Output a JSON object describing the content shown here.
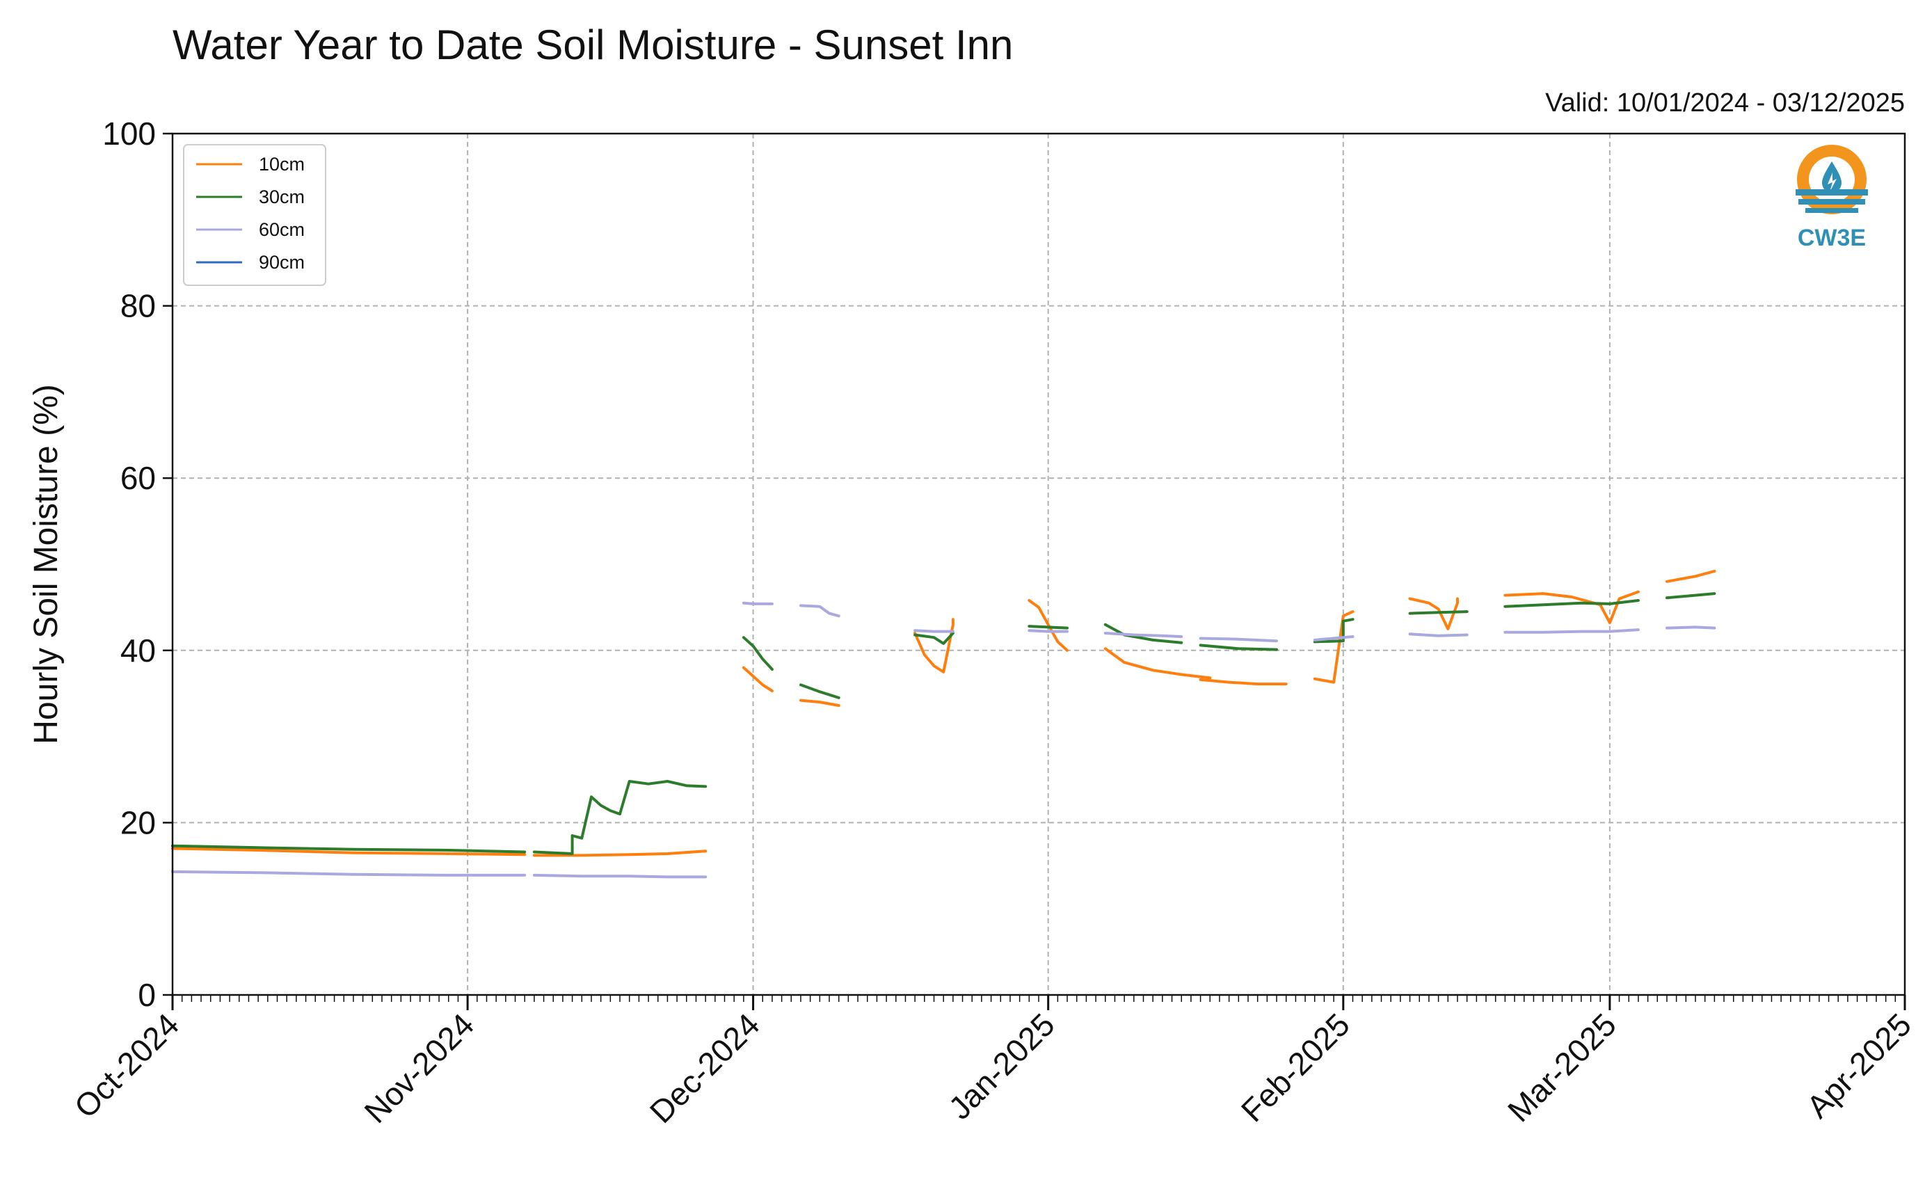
{
  "chart_data": {
    "type": "line",
    "title": "Water Year to Date Soil Moisture - Sunset Inn",
    "subtitle": "Valid: 10/01/2024 - 03/12/2025",
    "ylabel": "Hourly Soil Moisture (%)",
    "xlabel": "",
    "ylim": [
      0,
      100
    ],
    "xlim": [
      "2024-10-01",
      "2025-04-01"
    ],
    "yticks": [
      0,
      20,
      40,
      60,
      80,
      100
    ],
    "ytick_labels": [
      "0",
      "20",
      "40",
      "60",
      "80",
      "100"
    ],
    "xticks": [
      "2024-10-01",
      "2024-11-01",
      "2024-12-01",
      "2025-01-01",
      "2025-02-01",
      "2025-03-01",
      "2025-04-01"
    ],
    "xtick_labels": [
      "Oct-2024",
      "Nov-2024",
      "Dec-2024",
      "Jan-2025",
      "Feb-2025",
      "Mar-2025",
      "Apr-2025"
    ],
    "grid": true,
    "legend_position": "top-left",
    "logo_text": "CW3E",
    "series": [
      {
        "name": "10cm",
        "color": "#ff7f0e",
        "segments": [
          [
            [
              "2024-10-01",
              17.0
            ],
            [
              "2024-10-10",
              16.8
            ],
            [
              "2024-10-20",
              16.5
            ],
            [
              "2024-10-30",
              16.4
            ],
            [
              "2024-11-07",
              16.3
            ]
          ],
          [
            [
              "2024-11-08",
              16.2
            ],
            [
              "2024-11-13",
              16.2
            ],
            [
              "2024-11-18",
              16.3
            ],
            [
              "2024-11-22",
              16.4
            ],
            [
              "2024-11-26",
              16.7
            ]
          ],
          [
            [
              "2024-11-30",
              38.0
            ],
            [
              "2024-12-01",
              37.0
            ],
            [
              "2024-12-02",
              36.0
            ],
            [
              "2024-12-03",
              35.3
            ]
          ],
          [
            [
              "2024-12-06",
              34.2
            ],
            [
              "2024-12-08",
              34.0
            ],
            [
              "2024-12-10",
              33.6
            ]
          ],
          [
            [
              "2024-12-18",
              42.0
            ],
            [
              "2024-12-19",
              39.5
            ],
            [
              "2024-12-20",
              38.2
            ],
            [
              "2024-12-21",
              37.5
            ],
            [
              "2024-12-22",
              43.0
            ],
            [
              "2024-12-22",
              43.6
            ]
          ],
          [
            [
              "2024-12-30",
              45.8
            ],
            [
              "2024-12-31",
              45.0
            ],
            [
              "2025-01-01",
              43.0
            ],
            [
              "2025-01-02",
              41.0
            ],
            [
              "2025-01-03",
              40.0
            ]
          ],
          [
            [
              "2025-01-07",
              40.2
            ],
            [
              "2025-01-09",
              38.6
            ],
            [
              "2025-01-12",
              37.7
            ],
            [
              "2025-01-15",
              37.2
            ],
            [
              "2025-01-18",
              36.8
            ]
          ],
          [
            [
              "2025-01-17",
              36.6
            ],
            [
              "2025-01-20",
              36.3
            ],
            [
              "2025-01-23",
              36.1
            ],
            [
              "2025-01-26",
              36.1
            ]
          ],
          [
            [
              "2025-01-29",
              36.7
            ],
            [
              "2025-01-30",
              36.5
            ],
            [
              "2025-01-31",
              36.3
            ],
            [
              "2025-02-01",
              44.0
            ],
            [
              "2025-02-02",
              44.5
            ]
          ],
          [
            [
              "2025-02-08",
              46.0
            ],
            [
              "2025-02-10",
              45.5
            ],
            [
              "2025-02-11",
              44.8
            ],
            [
              "2025-02-12",
              42.5
            ],
            [
              "2025-02-13",
              45.5
            ],
            [
              "2025-02-13",
              46.0
            ]
          ],
          [
            [
              "2025-02-18",
              46.4
            ],
            [
              "2025-02-22",
              46.6
            ],
            [
              "2025-02-25",
              46.2
            ],
            [
              "2025-02-28",
              45.3
            ],
            [
              "2025-03-01",
              43.2
            ],
            [
              "2025-03-02",
              46.0
            ],
            [
              "2025-03-04",
              46.8
            ]
          ],
          [
            [
              "2025-03-07",
              48.0
            ],
            [
              "2025-03-10",
              48.6
            ],
            [
              "2025-03-12",
              49.2
            ]
          ]
        ]
      },
      {
        "name": "30cm",
        "color": "#2c7c2c",
        "segments": [
          [
            [
              "2024-10-01",
              17.3
            ],
            [
              "2024-10-10",
              17.1
            ],
            [
              "2024-10-20",
              16.9
            ],
            [
              "2024-10-30",
              16.8
            ],
            [
              "2024-11-07",
              16.6
            ]
          ],
          [
            [
              "2024-11-08",
              16.6
            ],
            [
              "2024-11-12",
              16.4
            ],
            [
              "2024-11-12",
              18.5
            ],
            [
              "2024-11-13",
              18.2
            ],
            [
              "2024-11-14",
              23.0
            ],
            [
              "2024-11-15",
              22.0
            ],
            [
              "2024-11-16",
              21.4
            ],
            [
              "2024-11-17",
              21.0
            ],
            [
              "2024-11-18",
              24.8
            ],
            [
              "2024-11-20",
              24.5
            ],
            [
              "2024-11-22",
              24.8
            ],
            [
              "2024-11-24",
              24.3
            ],
            [
              "2024-11-26",
              24.2
            ]
          ],
          [
            [
              "2024-11-30",
              41.5
            ],
            [
              "2024-12-01",
              40.5
            ],
            [
              "2024-12-02",
              39.0
            ],
            [
              "2024-12-03",
              37.8
            ]
          ],
          [
            [
              "2024-12-06",
              36.0
            ],
            [
              "2024-12-08",
              35.2
            ],
            [
              "2024-12-10",
              34.5
            ]
          ],
          [
            [
              "2024-12-18",
              41.8
            ],
            [
              "2024-12-20",
              41.5
            ],
            [
              "2024-12-21",
              40.8
            ],
            [
              "2024-12-22",
              42.0
            ]
          ],
          [
            [
              "2024-12-30",
              42.8
            ],
            [
              "2025-01-01",
              42.7
            ],
            [
              "2025-01-03",
              42.6
            ]
          ],
          [
            [
              "2025-01-07",
              43.0
            ],
            [
              "2025-01-09",
              41.8
            ],
            [
              "2025-01-12",
              41.2
            ],
            [
              "2025-01-15",
              40.9
            ]
          ],
          [
            [
              "2025-01-17",
              40.6
            ],
            [
              "2025-01-21",
              40.2
            ],
            [
              "2025-01-25",
              40.1
            ]
          ],
          [
            [
              "2025-01-29",
              41.0
            ],
            [
              "2025-02-01",
              41.1
            ],
            [
              "2025-02-01",
              43.4
            ],
            [
              "2025-02-02",
              43.6
            ]
          ],
          [
            [
              "2025-02-08",
              44.3
            ],
            [
              "2025-02-11",
              44.4
            ],
            [
              "2025-02-14",
              44.5
            ]
          ],
          [
            [
              "2025-02-18",
              45.1
            ],
            [
              "2025-02-22",
              45.3
            ],
            [
              "2025-02-26",
              45.5
            ],
            [
              "2025-03-01",
              45.4
            ],
            [
              "2025-03-04",
              45.8
            ]
          ],
          [
            [
              "2025-03-07",
              46.1
            ],
            [
              "2025-03-10",
              46.4
            ],
            [
              "2025-03-12",
              46.6
            ]
          ]
        ]
      },
      {
        "name": "60cm",
        "color": "#a9a9e0",
        "segments": [
          [
            [
              "2024-10-01",
              14.3
            ],
            [
              "2024-10-10",
              14.2
            ],
            [
              "2024-10-20",
              14.0
            ],
            [
              "2024-10-30",
              13.9
            ],
            [
              "2024-11-07",
              13.9
            ]
          ],
          [
            [
              "2024-11-08",
              13.9
            ],
            [
              "2024-11-13",
              13.8
            ],
            [
              "2024-11-18",
              13.8
            ],
            [
              "2024-11-22",
              13.7
            ],
            [
              "2024-11-26",
              13.7
            ]
          ],
          [
            [
              "2024-11-30",
              45.5
            ],
            [
              "2024-12-01",
              45.4
            ],
            [
              "2024-12-03",
              45.4
            ]
          ],
          [
            [
              "2024-12-06",
              45.2
            ],
            [
              "2024-12-08",
              45.1
            ],
            [
              "2024-12-09",
              44.3
            ],
            [
              "2024-12-10",
              44.0
            ]
          ],
          [
            [
              "2024-12-18",
              42.3
            ],
            [
              "2024-12-20",
              42.2
            ],
            [
              "2024-12-22",
              42.2
            ]
          ],
          [
            [
              "2024-12-30",
              42.3
            ],
            [
              "2025-01-01",
              42.2
            ],
            [
              "2025-01-03",
              42.2
            ]
          ],
          [
            [
              "2025-01-07",
              42.0
            ],
            [
              "2025-01-10",
              41.8
            ],
            [
              "2025-01-13",
              41.7
            ],
            [
              "2025-01-15",
              41.6
            ]
          ],
          [
            [
              "2025-01-17",
              41.4
            ],
            [
              "2025-01-21",
              41.3
            ],
            [
              "2025-01-25",
              41.1
            ]
          ],
          [
            [
              "2025-01-29",
              41.2
            ],
            [
              "2025-02-01",
              41.5
            ],
            [
              "2025-02-02",
              41.6
            ]
          ],
          [
            [
              "2025-02-08",
              41.9
            ],
            [
              "2025-02-11",
              41.7
            ],
            [
              "2025-02-14",
              41.8
            ]
          ],
          [
            [
              "2025-02-18",
              42.1
            ],
            [
              "2025-02-22",
              42.1
            ],
            [
              "2025-02-26",
              42.2
            ],
            [
              "2025-03-01",
              42.2
            ],
            [
              "2025-03-04",
              42.4
            ]
          ],
          [
            [
              "2025-03-07",
              42.6
            ],
            [
              "2025-03-10",
              42.7
            ],
            [
              "2025-03-12",
              42.6
            ]
          ]
        ]
      },
      {
        "name": "90cm",
        "color": "#2f6ac2",
        "segments": []
      }
    ]
  }
}
